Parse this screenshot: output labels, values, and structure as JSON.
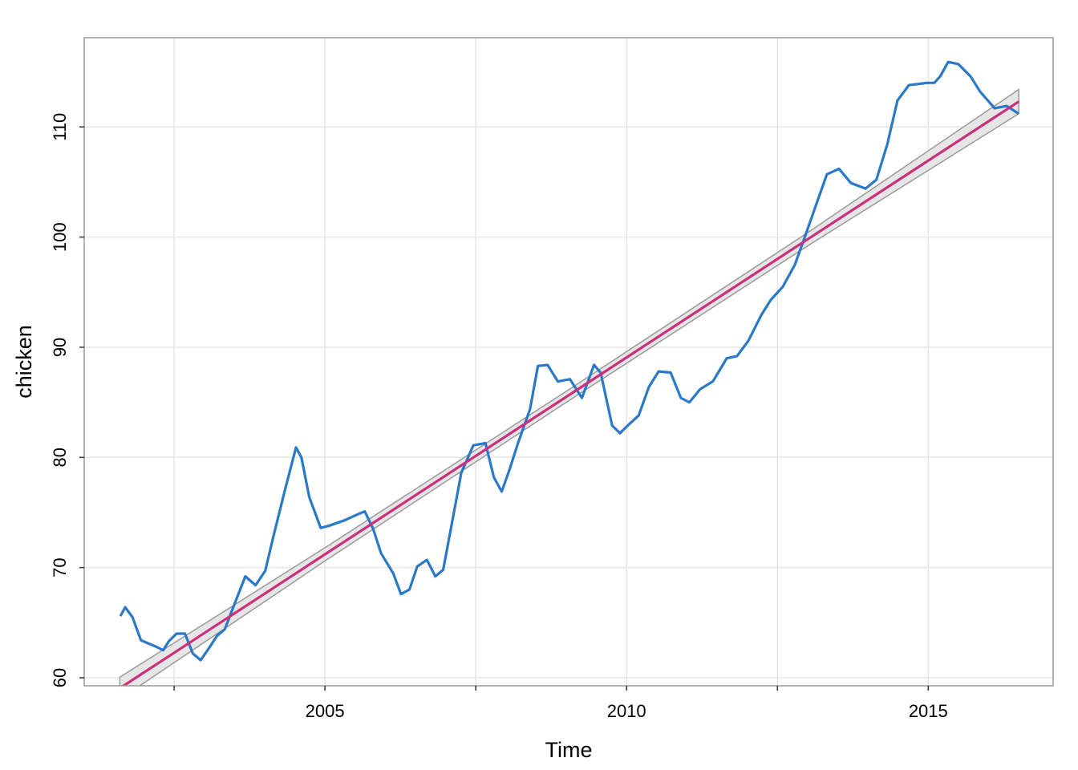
{
  "chart_data": {
    "type": "line",
    "xlabel": "Time",
    "ylabel": "chicken",
    "xlim": [
      2001.01,
      2017.07
    ],
    "ylim": [
      59.27,
      118.1
    ],
    "xticks": [
      2005,
      2010,
      2015
    ],
    "xminor": [
      2002.5,
      2007.5,
      2012.5
    ],
    "yticks": [
      60,
      70,
      80,
      90,
      100,
      110
    ],
    "grid": true,
    "series": [
      {
        "color": "#2a79c9",
        "x": [
          2001.61,
          2001.69,
          2001.81,
          2001.95,
          2002.08,
          2002.21,
          2002.32,
          2002.41,
          2002.54,
          2002.68,
          2002.81,
          2002.94,
          2003.08,
          2003.21,
          2003.34,
          2003.48,
          2003.68,
          2003.85,
          2004.01,
          2004.14,
          2004.34,
          2004.52,
          2004.61,
          2004.74,
          2004.93,
          2005.07,
          2005.33,
          2005.53,
          2005.66,
          2005.8,
          2005.93,
          2006.13,
          2006.26,
          2006.4,
          2006.53,
          2006.69,
          2006.83,
          2006.96,
          2007.09,
          2007.26,
          2007.46,
          2007.66,
          2007.8,
          2007.93,
          2008.06,
          2008.2,
          2008.4,
          2008.53,
          2008.69,
          2008.86,
          2009.06,
          2009.26,
          2009.46,
          2009.57,
          2009.76,
          2009.89,
          2010.02,
          2010.2,
          2010.37,
          2010.53,
          2010.73,
          2010.9,
          2011.04,
          2011.22,
          2011.43,
          2011.66,
          2011.83,
          2012.02,
          2012.23,
          2012.39,
          2012.59,
          2012.79,
          2012.96,
          2013.12,
          2013.32,
          2013.52,
          2013.72,
          2013.96,
          2014.14,
          2014.32,
          2014.49,
          2014.68,
          2014.84,
          2014.97,
          2015.1,
          2015.2,
          2015.33,
          2015.5,
          2015.7,
          2015.86,
          2016.1,
          2016.3,
          2016.5
        ],
        "values": [
          65.6,
          66.4,
          65.5,
          63.4,
          63.1,
          62.8,
          62.5,
          63.3,
          64.0,
          64.0,
          62.2,
          61.6,
          62.7,
          63.8,
          64.4,
          66.4,
          69.2,
          68.4,
          69.7,
          72.7,
          77.1,
          80.9,
          80.0,
          76.4,
          73.6,
          73.8,
          74.3,
          74.8,
          75.1,
          73.5,
          71.3,
          69.5,
          67.6,
          68.0,
          70.1,
          70.7,
          69.2,
          69.8,
          73.6,
          78.6,
          81.1,
          81.3,
          78.2,
          76.9,
          78.9,
          81.3,
          84.4,
          88.3,
          88.4,
          86.9,
          87.1,
          85.4,
          88.4,
          87.7,
          82.9,
          82.2,
          82.9,
          83.8,
          86.4,
          87.8,
          87.7,
          85.4,
          85.0,
          86.2,
          86.9,
          89.0,
          89.2,
          90.6,
          92.9,
          94.3,
          95.5,
          97.5,
          100.1,
          102.6,
          105.7,
          106.2,
          104.9,
          104.4,
          105.2,
          108.4,
          112.4,
          113.8,
          113.9,
          114.0,
          114.0,
          114.6,
          115.9,
          115.7,
          114.6,
          113.2,
          111.7,
          111.9,
          111.2
        ]
      },
      {
        "color": "#cc2f7b",
        "band_color": "#e6e6e6",
        "band_edge": "#9a9a9a",
        "x": [
          2001.6,
          2005,
          2009,
          2013,
          2016.5
        ],
        "values": [
          59.05,
          71.2,
          85.5,
          99.8,
          112.3
        ],
        "lower": [
          58.05,
          70.6,
          85.0,
          99.2,
          111.2
        ],
        "upper": [
          60.05,
          71.8,
          86.0,
          100.4,
          113.4
        ]
      }
    ]
  }
}
